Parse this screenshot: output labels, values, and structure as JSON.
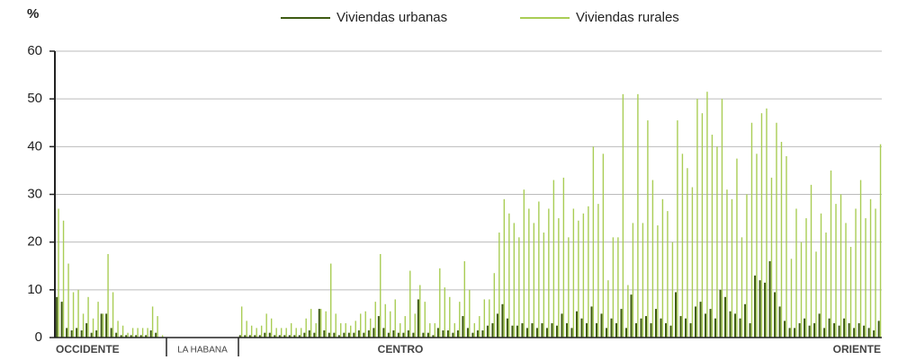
{
  "chart_data": {
    "type": "bar",
    "y_label": "%",
    "categories": [
      null,
      null,
      null,
      null,
      null,
      null,
      null,
      null,
      null,
      null,
      null,
      null,
      null,
      null,
      null,
      null,
      null,
      null,
      null,
      null,
      null,
      null,
      null,
      null,
      null,
      null,
      null,
      null,
      null,
      null,
      null,
      null,
      null,
      null,
      null,
      null,
      null,
      null,
      null,
      null,
      null,
      null,
      null,
      null,
      null,
      null,
      null,
      null,
      null,
      null,
      null,
      null,
      null,
      null,
      null,
      null,
      null,
      null,
      null,
      null,
      null,
      null,
      null,
      null,
      null,
      null,
      null,
      null,
      null,
      null,
      null,
      null,
      null,
      null,
      null,
      null,
      null,
      null,
      null,
      null,
      null,
      null,
      null,
      null,
      null,
      null,
      null,
      null,
      null,
      null,
      null,
      null,
      null,
      null,
      null,
      null,
      null,
      null,
      null,
      null,
      null,
      null,
      null,
      null,
      null,
      null,
      null,
      null,
      null,
      null,
      null,
      null,
      null,
      null,
      null,
      null,
      null,
      null,
      null,
      null,
      null,
      null,
      null,
      null,
      null,
      null,
      null,
      null,
      null,
      null,
      null,
      null,
      null,
      null,
      null,
      null,
      null,
      null,
      null,
      null,
      null,
      null,
      null,
      null,
      null,
      null,
      null,
      null,
      null,
      null,
      null,
      null,
      null,
      null,
      null,
      null,
      null,
      null,
      null,
      null,
      null,
      null,
      null,
      null,
      null,
      null,
      null
    ],
    "series": [
      {
        "name": "Viviendas urbanas",
        "color": "#3d5a12",
        "values": [
          8.5,
          7.5,
          2,
          1.5,
          2,
          1.5,
          3,
          1,
          1.5,
          5,
          5,
          2,
          1,
          0.5,
          0.5,
          0.5,
          0.5,
          0.5,
          0.5,
          1.5,
          1,
          0,
          0,
          0,
          0,
          0,
          0,
          0,
          0,
          0,
          0,
          0,
          0,
          0,
          0,
          0,
          0,
          0.5,
          0.5,
          0.5,
          0.5,
          0.5,
          1,
          1,
          0.5,
          0.5,
          0.5,
          0.5,
          0.5,
          0.5,
          1,
          1.5,
          1,
          6,
          1.5,
          1,
          1,
          0.5,
          1,
          1,
          1,
          1.5,
          1,
          1.5,
          2,
          4.5,
          2,
          1,
          1.5,
          1,
          1,
          1.5,
          1,
          8,
          1,
          1,
          0.5,
          2,
          1.5,
          1.5,
          1,
          1.5,
          4.5,
          2,
          1,
          1.5,
          1.5,
          2.5,
          3,
          5,
          7,
          4,
          2.5,
          2.5,
          3,
          2,
          3,
          2,
          3,
          2,
          3,
          2.5,
          5,
          3,
          2,
          5.5,
          4,
          3,
          6.5,
          3,
          5,
          2,
          4,
          3,
          6,
          2,
          9,
          3,
          4,
          4.5,
          3,
          6,
          4,
          3,
          2.5,
          9.5,
          4.5,
          4,
          3,
          6.5,
          7.5,
          5,
          6,
          4,
          10,
          8.5,
          5.5,
          5,
          4,
          7,
          3,
          13,
          12,
          11.5,
          16,
          9.5,
          6.5,
          3.5,
          2,
          2,
          3,
          4,
          2.5,
          3,
          5,
          2,
          4,
          3,
          2.5,
          4,
          3,
          2,
          3,
          2.5,
          2,
          1.5,
          3.5
        ]
      },
      {
        "name": "Viviendas rurales",
        "color": "#a9cd55",
        "values": [
          27,
          24.5,
          15.5,
          9.5,
          10,
          5,
          8.5,
          4,
          7.5,
          5,
          17.5,
          9.5,
          3.5,
          2.5,
          1,
          2,
          2,
          2,
          2,
          6.5,
          4.5,
          0.5,
          0,
          0,
          0,
          0,
          0,
          0,
          0,
          0,
          0,
          0,
          0,
          0,
          0,
          0,
          0,
          6.5,
          3.5,
          2.5,
          2,
          2.5,
          5,
          4,
          2,
          2,
          2,
          3,
          2,
          2,
          4,
          6,
          3,
          6,
          5.5,
          15.5,
          5,
          3,
          3,
          2.5,
          3.5,
          5,
          5.5,
          4,
          7.5,
          17.5,
          7,
          5.5,
          8,
          3,
          4.5,
          14,
          5,
          11,
          7.5,
          3,
          3,
          14.5,
          10.5,
          8.5,
          3,
          7.5,
          16,
          10,
          3,
          4.5,
          8,
          8,
          13.5,
          22,
          29,
          26,
          24,
          21,
          31,
          27,
          24,
          28.5,
          22,
          27,
          33,
          25,
          33.5,
          21,
          27,
          24.5,
          26,
          27.5,
          40,
          28,
          38.5,
          12,
          21,
          21,
          51,
          11,
          24,
          51,
          24,
          45.5,
          33,
          23.5,
          29,
          26.5,
          20,
          45.5,
          38.5,
          35.5,
          31.5,
          50,
          47,
          51.5,
          42.5,
          40,
          50,
          31,
          29,
          37.5,
          21,
          30,
          45,
          38.5,
          47,
          48,
          33.5,
          45,
          41,
          38,
          16.5,
          27,
          20,
          25,
          32,
          18,
          26,
          22,
          35,
          28,
          30,
          24,
          19,
          27,
          33,
          25,
          29,
          27,
          40.5
        ]
      }
    ],
    "regions": [
      "OCCIDENTE",
      "LA HABANA",
      "CENTRO",
      "ORIENTE"
    ],
    "ylim": [
      0,
      60
    ],
    "yticks": [
      0,
      10,
      20,
      30,
      40,
      50,
      60
    ],
    "grid": true
  }
}
